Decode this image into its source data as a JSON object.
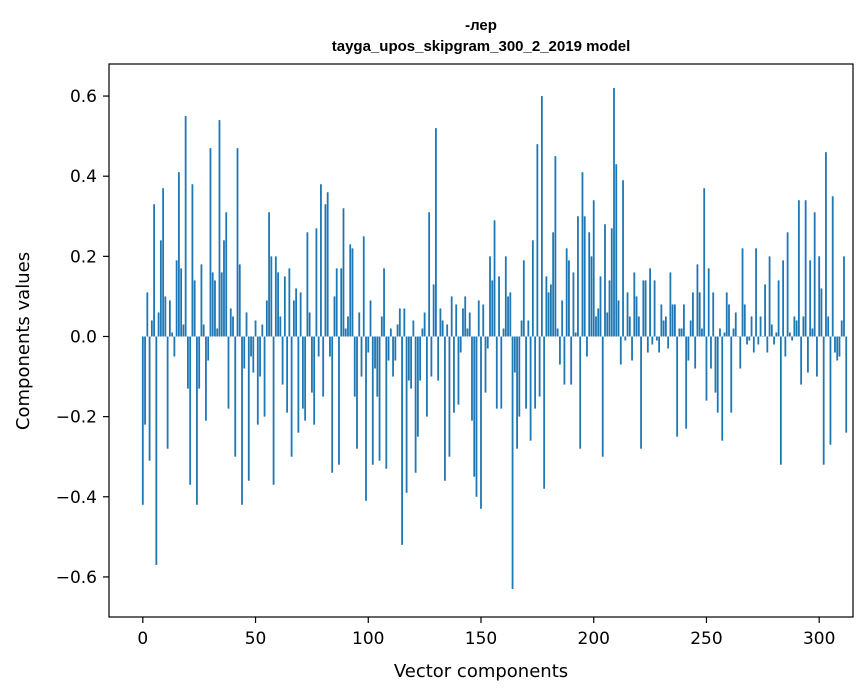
{
  "chart_data": {
    "type": "bar",
    "title": "-лер",
    "subtitle": "tayga_upos_skipgram_300_2_2019 model",
    "xlabel": "Vector components",
    "ylabel": "Components values",
    "xlim": [
      -15,
      315
    ],
    "ylim": [
      -0.7,
      0.68
    ],
    "x_ticks": [
      0,
      50,
      100,
      150,
      200,
      250,
      300
    ],
    "y_ticks": [
      -0.6,
      -0.4,
      -0.2,
      0.0,
      0.2,
      0.4,
      0.6
    ],
    "y_tick_labels": [
      "−0.6",
      "−0.4",
      "−0.2",
      "0.0",
      "0.2",
      "0.4",
      "0.6"
    ],
    "x_tick_labels": [
      "0",
      "50",
      "100",
      "150",
      "200",
      "250",
      "300"
    ],
    "bar_color": "#1f77b4",
    "values": [
      -0.42,
      -0.22,
      0.11,
      -0.31,
      0.04,
      0.33,
      -0.57,
      0.06,
      0.24,
      0.37,
      0.1,
      -0.28,
      0.09,
      0.01,
      -0.05,
      0.19,
      0.41,
      0.17,
      0.03,
      0.55,
      -0.13,
      -0.37,
      0.38,
      0.14,
      -0.42,
      -0.13,
      0.18,
      0.03,
      -0.21,
      -0.06,
      0.47,
      0.16,
      0.14,
      0.02,
      0.54,
      0.16,
      0.24,
      0.31,
      -0.18,
      0.07,
      0.05,
      -0.3,
      0.47,
      0.18,
      -0.42,
      -0.08,
      0.06,
      -0.36,
      -0.05,
      -0.09,
      0.04,
      -0.22,
      -0.1,
      0.03,
      -0.2,
      0.09,
      0.31,
      0.2,
      -0.37,
      0.2,
      0.16,
      0.05,
      -0.12,
      0.15,
      -0.19,
      0.17,
      -0.3,
      0.09,
      0.12,
      -0.24,
      0.11,
      -0.18,
      -0.21,
      0.26,
      0.06,
      -0.14,
      -0.22,
      0.27,
      -0.05,
      0.38,
      -0.15,
      0.33,
      0.36,
      -0.05,
      -0.34,
      0.1,
      0.17,
      -0.32,
      0.17,
      0.32,
      0.02,
      0.05,
      0.23,
      0.22,
      -0.15,
      -0.28,
      0.06,
      -0.1,
      0.25,
      -0.41,
      -0.04,
      0.09,
      -0.32,
      -0.08,
      -0.15,
      -0.31,
      0.05,
      0.17,
      -0.33,
      -0.06,
      0.02,
      -0.1,
      -0.06,
      0.03,
      0.07,
      -0.52,
      0.07,
      -0.39,
      -0.11,
      -0.13,
      0.04,
      -0.34,
      -0.25,
      -0.11,
      0.02,
      0.06,
      -0.2,
      0.31,
      -0.1,
      0.13,
      0.52,
      -0.11,
      0.07,
      0.04,
      -0.36,
      0.03,
      -0.3,
      0.1,
      -0.19,
      0.08,
      -0.17,
      -0.04,
      0.07,
      0.1,
      0.02,
      0.06,
      -0.21,
      -0.35,
      -0.4,
      0.09,
      -0.43,
      0.08,
      -0.14,
      -0.03,
      0.2,
      0.14,
      0.29,
      -0.18,
      0.15,
      -0.18,
      0.02,
      0.2,
      0.1,
      0.11,
      -0.63,
      -0.09,
      -0.28,
      -0.2,
      0.04,
      0.19,
      -0.18,
      0.04,
      -0.26,
      0.24,
      -0.18,
      0.48,
      -0.15,
      0.6,
      -0.38,
      0.15,
      0.11,
      0.13,
      0.26,
      0.45,
      0.02,
      -0.07,
      0.09,
      -0.12,
      0.22,
      0.19,
      -0.12,
      0.16,
      0.01,
      0.3,
      -0.28,
      0.41,
      0.3,
      -0.05,
      0.26,
      0.2,
      0.34,
      0.05,
      0.07,
      0.15,
      -0.3,
      0.28,
      0.06,
      0.14,
      0.27,
      0.62,
      0.43,
      0.09,
      -0.07,
      0.39,
      -0.01,
      0.11,
      0.05,
      -0.06,
      0.16,
      0.1,
      0.05,
      -0.28,
      0.14,
      0.14,
      -0.04,
      0.17,
      -0.02,
      0.14,
      -0.01,
      -0.04,
      0.08,
      0.04,
      0.05,
      -0.03,
      0.16,
      0.08,
      0.08,
      -0.25,
      0.02,
      0.02,
      0.08,
      -0.23,
      -0.06,
      0.04,
      0.11,
      -0.08,
      0.18,
      0.11,
      0.02,
      0.37,
      -0.16,
      0.17,
      -0.08,
      0.11,
      -0.14,
      -0.19,
      0.02,
      -0.26,
      0.01,
      0.11,
      0.08,
      -0.19,
      0.02,
      0.06,
      0.0,
      -0.08,
      0.22,
      0.08,
      -0.02,
      -0.01,
      0.05,
      -0.04,
      0.22,
      -0.02,
      0.05,
      0.0,
      0.13,
      -0.04,
      0.2,
      0.03,
      -0.02,
      0.01,
      0.14,
      -0.32,
      0.19,
      -0.05,
      0.26,
      0.01,
      -0.01,
      0.05,
      0.04,
      0.34,
      -0.12,
      0.05,
      0.34,
      -0.09,
      0.19,
      0.02,
      0.31,
      -0.1,
      0.2,
      0.12,
      -0.32,
      0.46,
      0.05,
      -0.27,
      0.35,
      -0.04,
      -0.06,
      -0.05,
      0.04,
      0.2,
      -0.24
    ]
  }
}
